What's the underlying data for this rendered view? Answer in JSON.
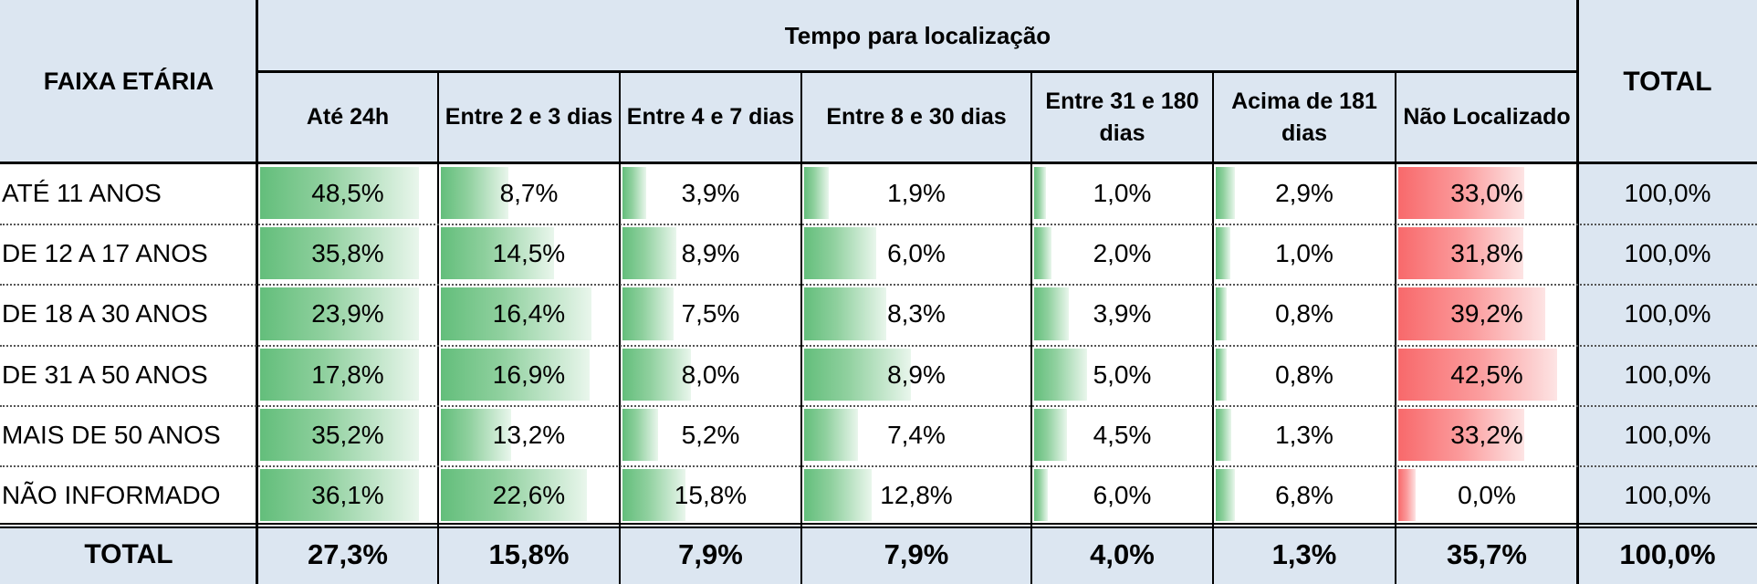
{
  "header": {
    "row_header": "FAIXA ETÁRIA",
    "group_header": "Tempo para localização",
    "total_header": "TOTAL",
    "columns": [
      "Até 24h",
      "Entre 2 e 3 dias",
      "Entre 4 e 7 dias",
      "Entre 8 e 30 dias",
      "Entre 31 e 180 dias",
      "Acima de 181 dias",
      "Não Localizado"
    ]
  },
  "rows": [
    {
      "label": "ATÉ 11 ANOS",
      "values": [
        "48,5%",
        "8,7%",
        "3,9%",
        "1,9%",
        "1,0%",
        "2,9%",
        "33,0%"
      ],
      "bar_fraction": [
        0.905,
        0.385,
        0.135,
        0.11,
        0.065,
        0.11,
        0.71
      ],
      "total": "100,0%"
    },
    {
      "label": "DE 12 A 17 ANOS",
      "values": [
        "35,8%",
        "14,5%",
        "8,9%",
        "6,0%",
        "2,0%",
        "1,0%",
        "31,8%"
      ],
      "bar_fraction": [
        0.905,
        0.64,
        0.305,
        0.32,
        0.1,
        0.08,
        0.705
      ],
      "total": "100,0%"
    },
    {
      "label": "DE 18 A 30 ANOS",
      "values": [
        "23,9%",
        "16,4%",
        "7,5%",
        "8,3%",
        "3,9%",
        "0,8%",
        "39,2%"
      ],
      "bar_fraction": [
        0.905,
        0.855,
        0.29,
        0.365,
        0.195,
        0.06,
        0.83
      ],
      "total": "100,0%"
    },
    {
      "label": "DE 31 A 50 ANOS",
      "values": [
        "17,8%",
        "16,9%",
        "8,0%",
        "8,9%",
        "5,0%",
        "0,8%",
        "42,5%"
      ],
      "bar_fraction": [
        0.905,
        0.845,
        0.39,
        0.475,
        0.3,
        0.06,
        0.895
      ],
      "total": "100,0%"
    },
    {
      "label": "MAIS DE 50 ANOS",
      "values": [
        "35,2%",
        "13,2%",
        "5,2%",
        "7,4%",
        "4,5%",
        "1,3%",
        "33,2%"
      ],
      "bar_fraction": [
        0.905,
        0.4,
        0.2,
        0.24,
        0.185,
        0.09,
        0.71
      ],
      "total": "100,0%"
    },
    {
      "label": "NÃO INFORMADO",
      "values": [
        "36,1%",
        "22,6%",
        "15,8%",
        "12,8%",
        "6,0%",
        "6,8%",
        "0,0%"
      ],
      "bar_fraction": [
        0.905,
        0.83,
        0.36,
        0.3,
        0.08,
        0.11,
        0.1
      ],
      "total": "100,0%"
    }
  ],
  "totals": {
    "label": "TOTAL",
    "values": [
      "27,3%",
      "15,8%",
      "7,9%",
      "7,9%",
      "4,0%",
      "1,3%",
      "35,7%"
    ],
    "total": "100,0%"
  },
  "colors": {
    "header_background": "#dce6f1",
    "positive_bar": "#63be7b",
    "negative_bar": "#f8696b"
  }
}
